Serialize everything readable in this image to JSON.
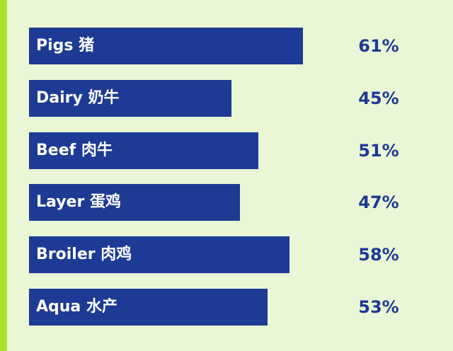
{
  "colors": {
    "background": "#eaf7d6",
    "accent_stripe": "#a8e22a",
    "bar": "#1d3a94",
    "bar_text": "#ffffff",
    "value_text": "#1d3a94"
  },
  "chart_data": {
    "type": "bar",
    "orientation": "horizontal",
    "categories": [
      "Pigs 猪",
      "Dairy 奶牛",
      "Beef 肉牛",
      "Layer 蛋鸡",
      "Broiler 肉鸡",
      "Aqua 水产"
    ],
    "values": [
      61,
      45,
      51,
      47,
      58,
      53
    ],
    "value_labels": [
      "61%",
      "45%",
      "51%",
      "47%",
      "58%",
      "53%"
    ],
    "xlim": [
      0,
      100
    ],
    "grid": false,
    "legend": "none"
  }
}
